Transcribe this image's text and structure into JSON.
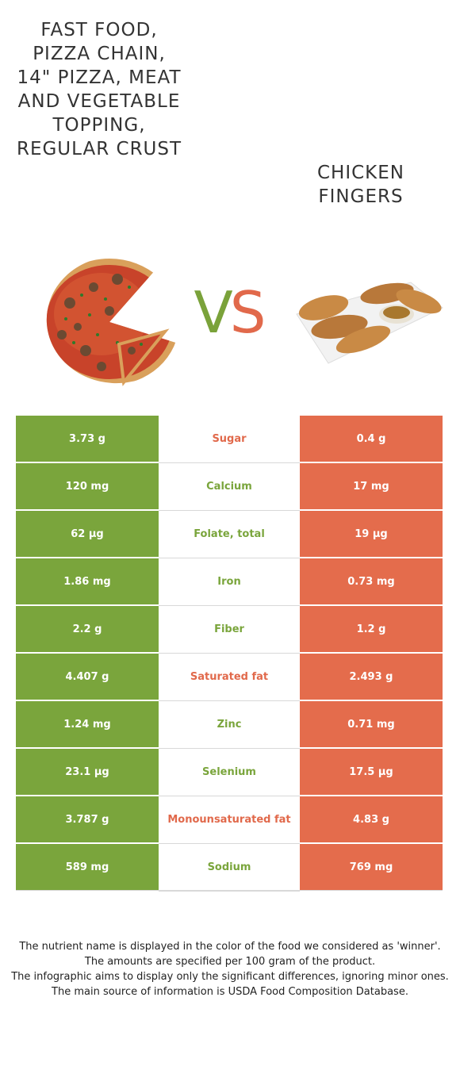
{
  "food_left": {
    "name": "Fast food, pizza chain, 14\" pizza, meat and vegetable topping, regular crust"
  },
  "food_right": {
    "name": "Chicken fingers"
  },
  "vs": {
    "v": "V",
    "s": "S"
  },
  "colors": {
    "left": "#7aa53c",
    "right": "#e46c4c"
  },
  "rows": [
    {
      "nutrient": "Sugar",
      "left": "3.73 g",
      "right": "0.4 g",
      "winner": "right"
    },
    {
      "nutrient": "Calcium",
      "left": "120 mg",
      "right": "17 mg",
      "winner": "left"
    },
    {
      "nutrient": "Folate, total",
      "left": "62 µg",
      "right": "19 µg",
      "winner": "left"
    },
    {
      "nutrient": "Iron",
      "left": "1.86 mg",
      "right": "0.73 mg",
      "winner": "left"
    },
    {
      "nutrient": "Fiber",
      "left": "2.2 g",
      "right": "1.2 g",
      "winner": "left"
    },
    {
      "nutrient": "Saturated fat",
      "left": "4.407 g",
      "right": "2.493 g",
      "winner": "right"
    },
    {
      "nutrient": "Zinc",
      "left": "1.24 mg",
      "right": "0.71 mg",
      "winner": "left"
    },
    {
      "nutrient": "Selenium",
      "left": "23.1 µg",
      "right": "17.5 µg",
      "winner": "left"
    },
    {
      "nutrient": "Monounsaturated fat",
      "left": "3.787 g",
      "right": "4.83 g",
      "winner": "right"
    },
    {
      "nutrient": "Sodium",
      "left": "589 mg",
      "right": "769 mg",
      "winner": "left"
    }
  ],
  "footer": [
    "The nutrient name is displayed in the color of the food we considered as 'winner'.",
    "The amounts are specified per 100 gram of the product.",
    "The infographic aims to display only the significant differences, ignoring minor ones.",
    "The main source of information is USDA Food Composition Database."
  ]
}
